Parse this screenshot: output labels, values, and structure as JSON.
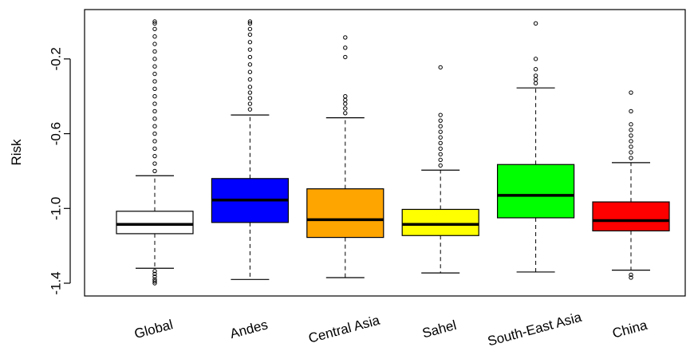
{
  "chart_data": {
    "type": "box",
    "ylabel": "Risk",
    "xlabel": "",
    "ylim": [
      -1.46,
      0.05
    ],
    "yticks": [
      -1.4,
      -1.0,
      -0.6,
      -0.2
    ],
    "ytick_labels": [
      "-1.4",
      "-1.0",
      "-0.6",
      "-0.2"
    ],
    "grid": false,
    "categories": [
      "Global",
      "Andes",
      "Central Asia",
      "Sahel",
      "South-East Asia",
      "China"
    ],
    "boxes": [
      {
        "name": "Global",
        "color": "#ffffff",
        "whisker_low": -1.32,
        "q1": -1.135,
        "median": -1.085,
        "q3": -1.015,
        "whisker_high": -0.825,
        "outliers_high": [
          -0.8,
          -0.76,
          -0.72,
          -0.68,
          -0.64,
          -0.6,
          -0.56,
          -0.52,
          -0.48,
          -0.44,
          -0.4,
          -0.36,
          -0.32,
          -0.28,
          -0.24,
          -0.2,
          -0.16,
          -0.12,
          -0.08,
          -0.04,
          -0.01,
          0.0
        ],
        "outliers_low": [
          -1.335,
          -1.35,
          -1.365,
          -1.38,
          -1.39,
          -1.4
        ]
      },
      {
        "name": "Andes",
        "color": "#0000ff",
        "whisker_low": -1.38,
        "q1": -1.075,
        "median": -0.955,
        "q3": -0.84,
        "whisker_high": -0.5,
        "outliers_high": [
          -0.47,
          -0.44,
          -0.41,
          -0.38,
          -0.35,
          -0.31,
          -0.27,
          -0.23,
          -0.19,
          -0.15,
          -0.11,
          -0.07,
          -0.04,
          -0.01,
          0.0
        ],
        "outliers_low": []
      },
      {
        "name": "Central Asia",
        "color": "#ffa500",
        "whisker_low": -1.37,
        "q1": -1.155,
        "median": -1.06,
        "q3": -0.895,
        "whisker_high": -0.515,
        "outliers_high": [
          -0.49,
          -0.465,
          -0.44,
          -0.42,
          -0.4,
          -0.19,
          -0.14,
          -0.085
        ],
        "outliers_low": []
      },
      {
        "name": "Sahel",
        "color": "#ffff00",
        "whisker_low": -1.345,
        "q1": -1.145,
        "median": -1.085,
        "q3": -1.005,
        "whisker_high": -0.795,
        "outliers_high": [
          -0.77,
          -0.74,
          -0.71,
          -0.68,
          -0.65,
          -0.62,
          -0.59,
          -0.56,
          -0.53,
          -0.5,
          -0.245
        ],
        "outliers_low": []
      },
      {
        "name": "South-East Asia",
        "color": "#00ff00",
        "whisker_low": -1.34,
        "q1": -1.05,
        "median": -0.93,
        "q3": -0.765,
        "whisker_high": -0.355,
        "outliers_high": [
          -0.33,
          -0.31,
          -0.29,
          -0.255,
          -0.2,
          -0.01
        ],
        "outliers_low": []
      },
      {
        "name": "China",
        "color": "#ff0000",
        "whisker_low": -1.33,
        "q1": -1.12,
        "median": -1.065,
        "q3": -0.965,
        "whisker_high": -0.755,
        "outliers_high": [
          -0.73,
          -0.7,
          -0.67,
          -0.64,
          -0.61,
          -0.58,
          -0.55,
          -0.48,
          -0.38
        ],
        "outliers_low": [
          -1.355,
          -1.37
        ]
      }
    ]
  }
}
